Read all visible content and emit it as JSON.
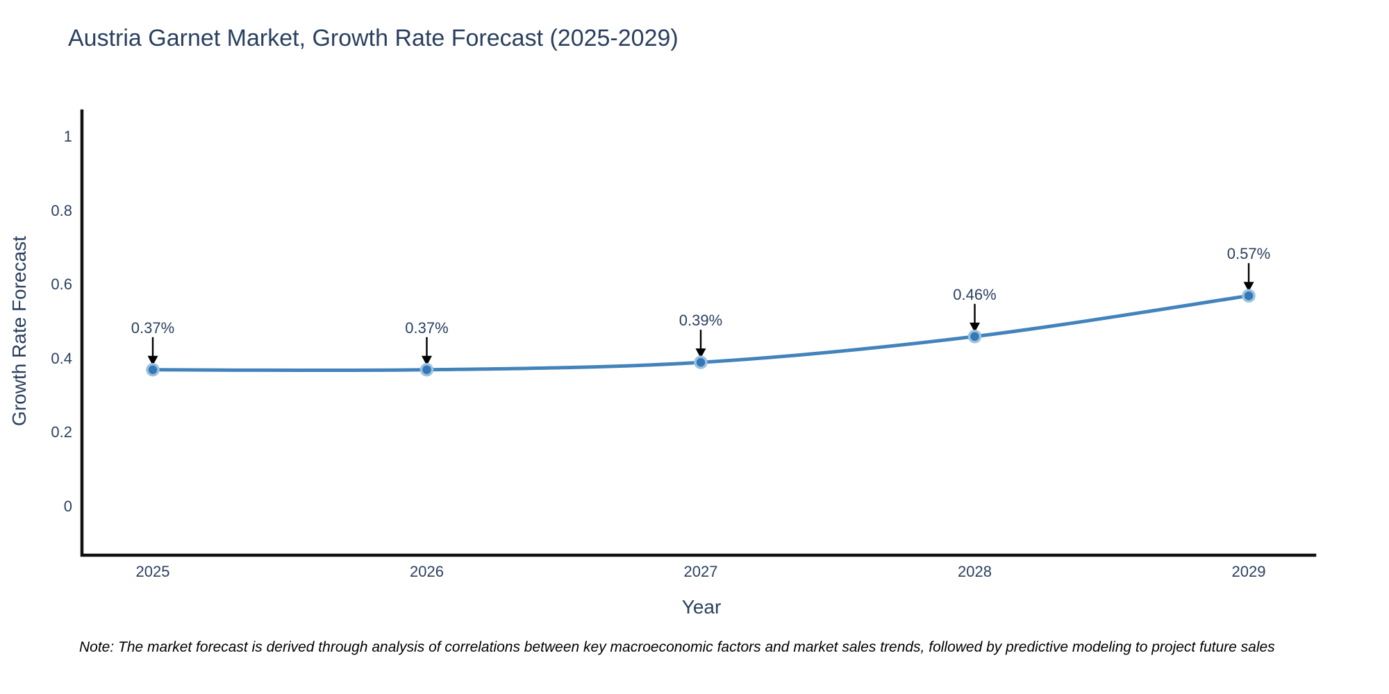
{
  "chart_data": {
    "type": "line",
    "title": "Austria Garnet Market, Growth Rate Forecast (2025-2029)",
    "xlabel": "Year",
    "ylabel": "Growth Rate Forecast",
    "categories": [
      2025,
      2026,
      2027,
      2028,
      2029
    ],
    "series": [
      {
        "name": "Growth Rate Forecast",
        "values": [
          0.37,
          0.37,
          0.39,
          0.46,
          0.57
        ]
      }
    ],
    "point_labels": [
      "0.37%",
      "0.37%",
      "0.39%",
      "0.46%",
      "0.57%"
    ],
    "ytick_values": [
      0,
      0.2,
      0.4,
      0.6,
      0.8,
      1
    ],
    "ytick_labels": [
      "0",
      "0.2",
      "0.4",
      "0.6",
      "0.8",
      "1"
    ],
    "ylim": [
      -0.13,
      1.07
    ],
    "grid": false,
    "legend_position": "none",
    "colors": {
      "line": "#4383bc",
      "marker": "#3478b6",
      "marker_halo": "#9cc1e0",
      "arrow": "#000000",
      "axis_line": "#111111",
      "text": "#2a3f5f"
    }
  },
  "note": {
    "text": "Note: The market forecast is derived through analysis of correlations between key macroeconomic factors and market sales trends, followed by predictive modeling to project future sales"
  }
}
